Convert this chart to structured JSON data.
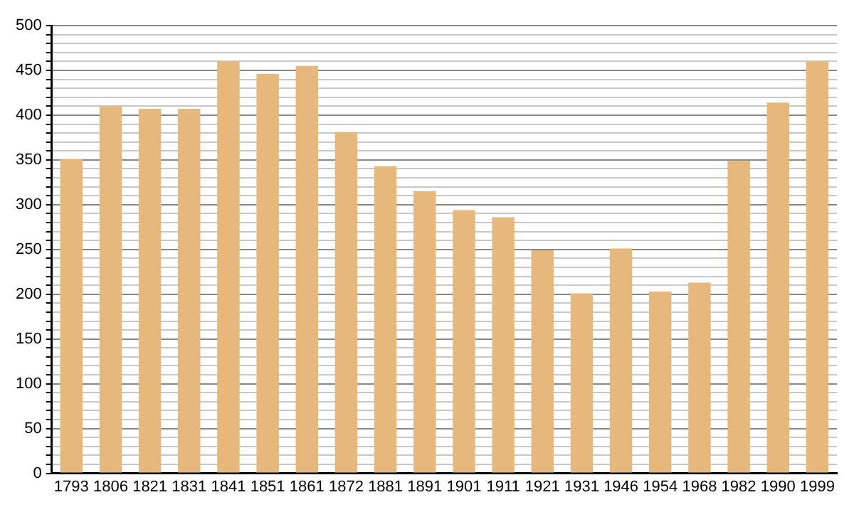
{
  "chart_data": {
    "type": "bar",
    "categories": [
      "1793",
      "1806",
      "1821",
      "1831",
      "1841",
      "1851",
      "1861",
      "1872",
      "1881",
      "1891",
      "1901",
      "1911",
      "1921",
      "1931",
      "1946",
      "1954",
      "1968",
      "1982",
      "1990",
      "1999"
    ],
    "values": [
      351,
      410,
      407,
      407,
      460,
      446,
      455,
      381,
      343,
      315,
      294,
      286,
      249,
      201,
      251,
      203,
      213,
      349,
      414,
      460
    ],
    "color": "#e6b87c",
    "ylim": [
      0,
      500
    ],
    "yticks": [
      0,
      {
        "value": 10,
        "label": null
      },
      {
        "value": 20,
        "label": null
      },
      {
        "value": 30,
        "label": null
      },
      {
        "value": 40,
        "label": null
      },
      50,
      {
        "value": 60,
        "label": null
      },
      {
        "value": 70,
        "label": null
      },
      {
        "value": 80,
        "label": null
      },
      {
        "value": 90,
        "label": null
      },
      100,
      {
        "value": 110,
        "label": null
      },
      {
        "value": 120,
        "label": null
      },
      {
        "value": 130,
        "label": null
      },
      {
        "value": 140,
        "label": null
      },
      150,
      {
        "value": 160,
        "label": null
      },
      {
        "value": 170,
        "label": null
      },
      {
        "value": 180,
        "label": null
      },
      {
        "value": 190,
        "label": null
      },
      200,
      {
        "value": 210,
        "label": null
      },
      {
        "value": 220,
        "label": null
      },
      {
        "value": 230,
        "label": null
      },
      {
        "value": 240,
        "label": null
      },
      250,
      {
        "value": 260,
        "label": null
      },
      {
        "value": 270,
        "label": null
      },
      {
        "value": 280,
        "label": null
      },
      {
        "value": 290,
        "label": null
      },
      300,
      {
        "value": 310,
        "label": null
      },
      {
        "value": 320,
        "label": null
      },
      {
        "value": 330,
        "label": null
      },
      {
        "value": 340,
        "label": null
      },
      350,
      {
        "value": 360,
        "label": null
      },
      {
        "value": 370,
        "label": null
      },
      {
        "value": 380,
        "label": null
      },
      {
        "value": 390,
        "label": null
      },
      400,
      {
        "value": 410,
        "label": null
      },
      {
        "value": 420,
        "label": null
      },
      {
        "value": 430,
        "label": null
      },
      {
        "value": 440,
        "label": null
      },
      450,
      {
        "value": 460,
        "label": null
      },
      {
        "value": 470,
        "label": null
      },
      {
        "value": 480,
        "label": null
      },
      {
        "value": 490,
        "label": null
      },
      500
    ],
    "grid": "y"
  }
}
